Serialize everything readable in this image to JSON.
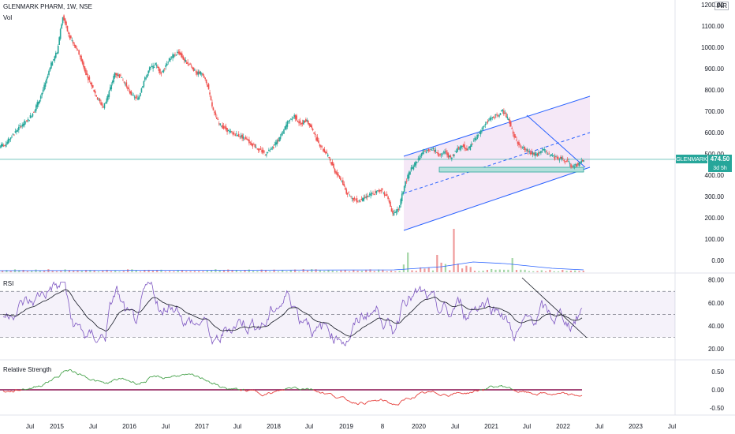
{
  "header": {
    "symbol_line": "GLENMARK PHARM, 1W, NSE",
    "volume_label": "Vol",
    "currency_badge": "INR"
  },
  "price_tag": {
    "name": "GLENMARK",
    "value": "474.50",
    "countdown": "3d 5h"
  },
  "chart_data": [
    {
      "type": "line",
      "panel": "price",
      "y_axis_ticks": [
        "1200.00",
        "1100.00",
        "1000.00",
        "900.00",
        "800.00",
        "700.00",
        "600.00",
        "500.00",
        "400.00",
        "300.00",
        "200.00",
        "100.00",
        "0.00"
      ],
      "ylim": [
        0,
        1200
      ],
      "x_axis_ticks": [
        "Jul",
        "2015",
        "Jul",
        "2016",
        "Jul",
        "2017",
        "Jul",
        "2018",
        "Jul",
        "2019",
        "8",
        "2020",
        "Jul",
        "2021",
        "Jul",
        "2022",
        "Jul",
        "2023",
        "Jul"
      ],
      "series": [
        {
          "values": [
            540,
            580,
            610,
            640,
            660,
            700,
            760,
            830,
            920,
            980,
            1150,
            1060,
            1010,
            960,
            880,
            820,
            760,
            720,
            790,
            880,
            860,
            820,
            770,
            760,
            840,
            900,
            920,
            880,
            930,
            960,
            980,
            940,
            920,
            880,
            880,
            820,
            700,
            640,
            620,
            600,
            590,
            580,
            560,
            540,
            520,
            500,
            520,
            560,
            600,
            660,
            680,
            640,
            660,
            620,
            560,
            520,
            480,
            420,
            380,
            320,
            290,
            280,
            290,
            310,
            320,
            330,
            300,
            220,
            240,
            350,
            420,
            460,
            500,
            520,
            520,
            500,
            510,
            480,
            520,
            540,
            520,
            560,
            600,
            640,
            670,
            680,
            700,
            660,
            580,
            540,
            520,
            500,
            500,
            520,
            500,
            480,
            480,
            470,
            440,
            450,
            474.5
          ]
        }
      ],
      "annotations": [
        "ascending channel",
        "descending trendline",
        "support zone near 430"
      ]
    },
    {
      "type": "line",
      "panel": "rsi",
      "title": "RSI",
      "y_axis_ticks": [
        "80.00",
        "60.00",
        "40.00",
        "20.00"
      ],
      "ylim": [
        20,
        80
      ],
      "bands": [
        30,
        50,
        70
      ]
    },
    {
      "type": "line",
      "panel": "relative_strength",
      "title": "Relative Strength",
      "y_axis_ticks": [
        "0.50",
        "0.00",
        "-0.50"
      ],
      "ylim": [
        -0.6,
        0.6
      ]
    }
  ]
}
